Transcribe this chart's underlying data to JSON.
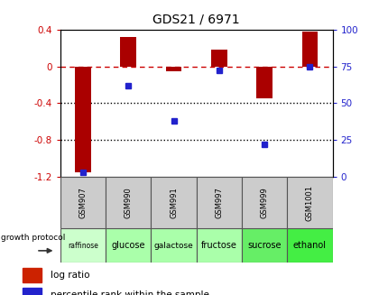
{
  "title": "GDS21 / 6971",
  "samples": [
    "GSM907",
    "GSM990",
    "GSM991",
    "GSM997",
    "GSM999",
    "GSM1001"
  ],
  "log_ratio": [
    -1.15,
    0.32,
    -0.05,
    0.18,
    -0.35,
    0.38
  ],
  "percentile_rank": [
    3,
    62,
    38,
    72,
    22,
    75
  ],
  "growth_protocol": [
    "raffinose",
    "glucose",
    "galactose",
    "fructose",
    "sucrose",
    "ethanol"
  ],
  "bar_color": "#aa0000",
  "dot_color": "#2222cc",
  "ylim_left": [
    -1.2,
    0.4
  ],
  "ylim_right": [
    0,
    100
  ],
  "yticks_left": [
    -1.2,
    -0.8,
    -0.4,
    0.0,
    0.4
  ],
  "yticks_right": [
    0,
    25,
    50,
    75,
    100
  ],
  "hline_color": "#cc0000",
  "dotted_color": "#000000",
  "background_color": "#ffffff",
  "plot_bg_color": "#ffffff",
  "title_color": "#000000",
  "left_tick_color": "#cc0000",
  "right_tick_color": "#2222cc",
  "sample_bg_color": "#cccccc",
  "protocol_colors": [
    "#ccffcc",
    "#aaffaa",
    "#aaffaa",
    "#aaffaa",
    "#66ee66",
    "#44ee44"
  ],
  "legend_labels": [
    "log ratio",
    "percentile rank within the sample"
  ],
  "legend_bar_color": "#cc2200",
  "legend_dot_color": "#2222cc"
}
